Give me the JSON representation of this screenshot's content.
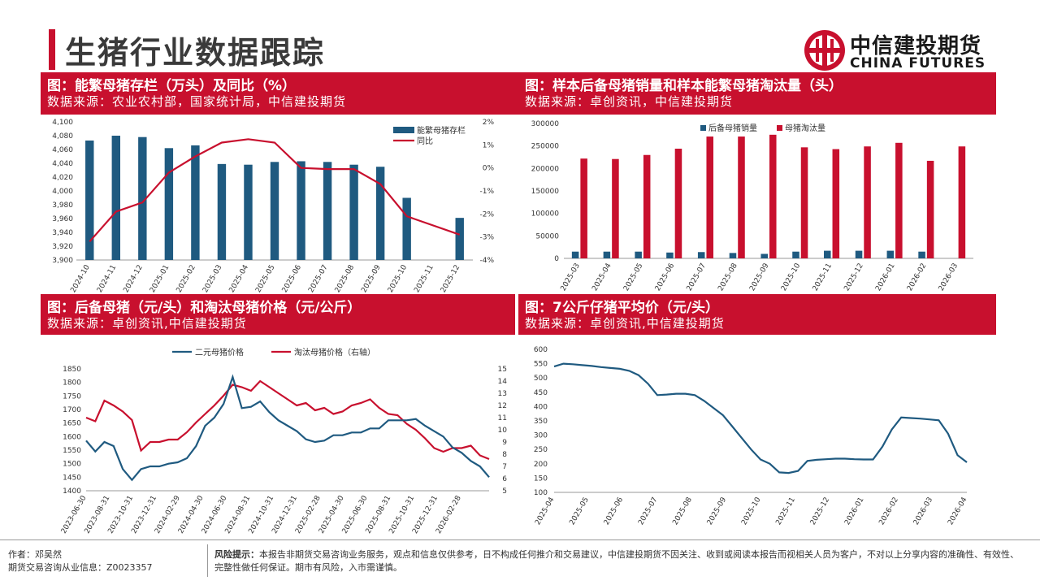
{
  "header": {
    "title": "生猪行业数据跟踪",
    "logo_cn": "中信建投期货",
    "logo_en": "CHINA FUTURES"
  },
  "colors": {
    "accent": "#c8102e",
    "navy": "#1f5a80",
    "red_series": "#c8102e"
  },
  "panels": [
    {
      "title": "图：能繁母猪存栏（万头）及同比（%）",
      "source": "数据来源：农业农村部，国家统计局，中信建投期货"
    },
    {
      "title": "图：样本后备母猪销量和样本能繁母猪淘汰量（头）",
      "source": "数据来源：卓创资讯，中信建投期货"
    },
    {
      "title": "图：后备母猪（元/头）和淘汰母猪价格（元/公斤）",
      "source": "数据来源：卓创资讯,中信建投期货"
    },
    {
      "title": "图：7公斤仔猪平均价（元/头）",
      "source": "数据来源：卓创资讯,中信建投期货"
    }
  ],
  "chart_data": [
    {
      "type": "bar",
      "categories": [
        "2024-10",
        "2024-11",
        "2024-12",
        "2025-01",
        "2025-02",
        "2025-03",
        "2025-04",
        "2025-05",
        "2025-06",
        "2025-07",
        "2025-08",
        "2025-09",
        "2025-10",
        "2025-11",
        "2025-12"
      ],
      "series": [
        {
          "name": "能繁母猪存栏",
          "type": "bar",
          "axis": "left",
          "values": [
            4073,
            4080,
            4078,
            4062,
            4066,
            4039,
            4038,
            4042,
            4043,
            4042,
            4038,
            4035,
            3990,
            null,
            3961
          ]
        },
        {
          "name": "同比",
          "type": "line",
          "axis": "right",
          "values": [
            -3.2,
            -1.9,
            -1.5,
            -0.2,
            0.5,
            1.1,
            1.25,
            1.1,
            0.0,
            -0.05,
            -0.05,
            -0.7,
            -2.1,
            null,
            -2.9
          ]
        }
      ],
      "y_left": {
        "min": 3900,
        "max": 4100,
        "ticks": [
          "3,900",
          "3,920",
          "3,940",
          "3,960",
          "3,980",
          "4,000",
          "4,020",
          "4,040",
          "4,060",
          "4,080",
          "4,100"
        ]
      },
      "y_right": {
        "min": -4,
        "max": 2,
        "ticks": [
          "-4%",
          "-3%",
          "-2%",
          "-1%",
          "0%",
          "1%",
          "2%"
        ]
      },
      "legend_position": "top-right"
    },
    {
      "type": "bar",
      "categories": [
        "2025-03",
        "2025-04",
        "2025-05",
        "2025-06",
        "2025-07",
        "2025-08",
        "2025-09",
        "2025-10",
        "2025-11",
        "2025-12",
        "2026-01",
        "2026-02",
        "2026-03"
      ],
      "series": [
        {
          "name": "后备母猪销量",
          "values": [
            15000,
            15000,
            15000,
            13000,
            14000,
            12000,
            10000,
            15000,
            17000,
            17000,
            17000,
            15000,
            null
          ]
        },
        {
          "name": "母猪淘汰量",
          "values": [
            222000,
            221000,
            230000,
            244000,
            271000,
            271000,
            275000,
            247000,
            243000,
            249000,
            257000,
            217000,
            249000
          ]
        }
      ],
      "y_axis": {
        "min": 0,
        "max": 300000,
        "ticks": [
          "0",
          "50000",
          "100000",
          "150000",
          "200000",
          "250000",
          "300000"
        ]
      },
      "legend_position": "top-center"
    },
    {
      "type": "line",
      "x_ticks": [
        "2023-06-30",
        "2023-08-31",
        "2023-10-31",
        "2023-12-31",
        "2024-02-29",
        "2024-04-30",
        "2024-06-30",
        "2024-08-31",
        "2024-10-31",
        "2024-12-31",
        "2025-02-28",
        "2025-04-30",
        "2025-06-30",
        "2025-08-31",
        "2025-10-31",
        "2025-12-31",
        "2026-02-28"
      ],
      "series": [
        {
          "name": "二元母猪价格",
          "axis": "left",
          "values": [
            1585,
            1545,
            1580,
            1565,
            1480,
            1440,
            1480,
            1490,
            1490,
            1500,
            1505,
            1520,
            1565,
            1640,
            1670,
            1720,
            1820,
            1705,
            1710,
            1730,
            1690,
            1660,
            1640,
            1620,
            1590,
            1580,
            1585,
            1605,
            1605,
            1615,
            1615,
            1630,
            1630,
            1660,
            1660,
            1660,
            1665,
            1640,
            1620,
            1600,
            1560,
            1540,
            1510,
            1490,
            1450
          ]
        },
        {
          "name": "淘汰母猪价格（右轴）",
          "axis": "right",
          "values": [
            11.0,
            10.7,
            12.4,
            12.0,
            11.5,
            10.8,
            8.3,
            9.0,
            9.0,
            9.2,
            9.2,
            9.8,
            10.6,
            11.3,
            12.0,
            12.8,
            13.7,
            13.5,
            13.2,
            14.0,
            13.5,
            13.0,
            12.5,
            12.0,
            12.2,
            11.6,
            11.8,
            11.3,
            11.5,
            12.0,
            12.2,
            12.5,
            11.8,
            11.3,
            11.2,
            10.5,
            10.0,
            9.3,
            8.5,
            8.2,
            8.5,
            8.5,
            8.7,
            7.9,
            7.6
          ]
        }
      ],
      "y_left": {
        "min": 1400,
        "max": 1850,
        "ticks": [
          "1400",
          "1450",
          "1500",
          "1550",
          "1600",
          "1650",
          "1700",
          "1750",
          "1800",
          "1850"
        ]
      },
      "y_right": {
        "min": 5,
        "max": 15,
        "ticks": [
          "5",
          "6",
          "7",
          "8",
          "9",
          "10",
          "11",
          "12",
          "13",
          "14",
          "15"
        ]
      },
      "legend_position": "top-center"
    },
    {
      "type": "line",
      "x_ticks": [
        "2025-04",
        "2025-05",
        "2025-06",
        "2025-07",
        "2025-08",
        "2025-09",
        "2025-10",
        "2025-11",
        "2025-12",
        "2026-01",
        "2026-02",
        "2026-03",
        "2026-04"
      ],
      "series": [
        {
          "values": [
            540,
            550,
            548,
            545,
            542,
            538,
            535,
            532,
            525,
            510,
            480,
            440,
            442,
            445,
            445,
            440,
            420,
            395,
            370,
            330,
            290,
            250,
            215,
            200,
            170,
            168,
            175,
            210,
            214,
            216,
            218,
            218,
            216,
            215,
            215,
            260,
            320,
            362,
            360,
            358,
            355,
            352,
            305,
            230,
            205
          ]
        }
      ],
      "y_axis": {
        "min": 100,
        "max": 600,
        "ticks": [
          "100",
          "150",
          "200",
          "250",
          "300",
          "350",
          "400",
          "450",
          "500",
          "550",
          "600"
        ]
      }
    }
  ],
  "footer": {
    "author": "作者：邓吴然",
    "license": "期货交易咨询从业信息：Z0023357",
    "risk_label": "风险提示：",
    "risk_text": "本报告非期货交易咨询业务服务，观点和信息仅供参考，日不构成任何推介和交易建议，中信建投期货不因关注、收到或阅读本报告而视相关人员为客户，不对以上分享内容的准确性、有效性、完整性做任何保证。期市有风险，入市需谨慎。"
  }
}
